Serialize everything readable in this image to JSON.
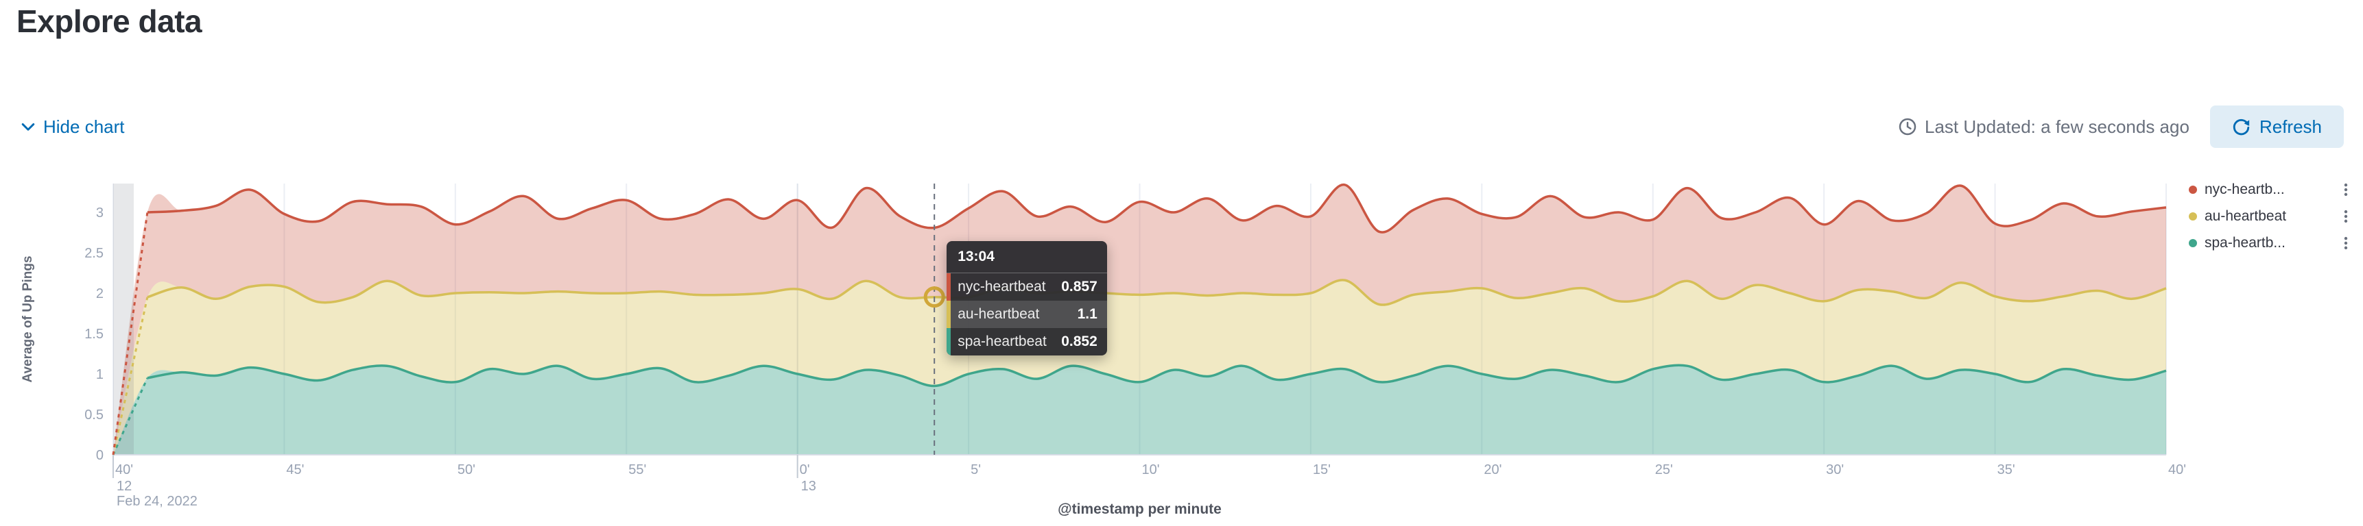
{
  "header": {
    "title": "Explore data"
  },
  "toolbar": {
    "hide_chart_label": "Hide chart",
    "last_updated": "Last Updated: a few seconds ago",
    "refresh_label": "Refresh"
  },
  "colors": {
    "link": "#006BB4",
    "crosshair": "#69707D",
    "hover_ring": "#D1A73A",
    "grid": "#EBEEF4",
    "axis_text": "#98A2B3",
    "partial_band": "rgba(105,112,125,0.16)"
  },
  "legend": {
    "items": [
      {
        "label": "nyc-heartb...",
        "color": "#CB5642"
      },
      {
        "label": "au-heartbeat",
        "color": "#D6BF57"
      },
      {
        "label": "spa-heartb...",
        "color": "#3FA68C"
      }
    ]
  },
  "tooltip": {
    "time": "13:04",
    "hover_index": 24,
    "rows": [
      {
        "label": "nyc-heartbeat",
        "value": "0.857",
        "color": "#CB5642",
        "highlight": false
      },
      {
        "label": "au-heartbeat",
        "value": "1.1",
        "color": "#D6BF57",
        "highlight": true
      },
      {
        "label": "spa-heartbeat",
        "value": "0.852",
        "color": "#3FA68C",
        "highlight": false
      }
    ]
  },
  "chart_data": {
    "type": "area",
    "stacked": true,
    "title": "",
    "xlabel": "@timestamp per minute",
    "ylabel": "Average of Up Pings",
    "y_ticks": [
      0,
      0.5,
      1,
      1.5,
      2,
      2.5,
      3
    ],
    "ylim": [
      0,
      3.3
    ],
    "x_start": "12:40",
    "x_end": "13:40",
    "x_interval": "1 minute",
    "x_ticks": [
      {
        "label": "40'",
        "index": 0
      },
      {
        "label": "45'",
        "index": 5
      },
      {
        "label": "50'",
        "index": 10
      },
      {
        "label": "55'",
        "index": 15
      },
      {
        "label": "0'",
        "index": 20
      },
      {
        "label": "5'",
        "index": 25
      },
      {
        "label": "10'",
        "index": 30
      },
      {
        "label": "15'",
        "index": 35
      },
      {
        "label": "20'",
        "index": 40
      },
      {
        "label": "25'",
        "index": 45
      },
      {
        "label": "30'",
        "index": 50
      },
      {
        "label": "35'",
        "index": 55
      },
      {
        "label": "40'",
        "index": 60
      }
    ],
    "x_context": [
      {
        "label": "12",
        "sub": "Feb 24, 2022",
        "index": 0
      },
      {
        "label": "13",
        "sub": "",
        "index": 20
      }
    ],
    "series": [
      {
        "name": "spa-heartbeat",
        "color": "#3FA68C",
        "fill": "rgba(63,166,140,0.40)",
        "values": [
          0,
          0.95,
          1.02,
          0.98,
          1.08,
          1.0,
          0.92,
          1.05,
          1.1,
          0.97,
          0.9,
          1.06,
          1.0,
          1.1,
          0.94,
          1.0,
          1.07,
          0.9,
          0.98,
          1.1,
          1.0,
          0.93,
          1.05,
          0.98,
          0.852,
          1.0,
          1.06,
          0.94,
          1.1,
          1.0,
          0.9,
          1.05,
          0.97,
          1.1,
          0.93,
          1.0,
          1.06,
          0.9,
          0.98,
          1.1,
          1.0,
          0.94,
          1.05,
          0.98,
          0.9,
          1.06,
          1.1,
          0.93,
          1.0,
          1.05,
          0.9,
          0.98,
          1.1,
          0.94,
          1.05,
          1.0,
          0.9,
          1.06,
          0.98,
          0.93,
          1.04
        ]
      },
      {
        "name": "au-heartbeat",
        "color": "#D6BF57",
        "fill": "rgba(214,191,87,0.35)",
        "values": [
          0,
          1.0,
          1.05,
          0.95,
          1.0,
          1.08,
          0.97,
          0.9,
          1.05,
          1.0,
          1.1,
          0.95,
          1.0,
          0.92,
          1.06,
          1.0,
          0.95,
          1.08,
          1.0,
          0.9,
          1.05,
          1.0,
          1.1,
          0.97,
          1.1,
          0.95,
          1.0,
          1.06,
          0.92,
          1.0,
          1.08,
          0.95,
          1.0,
          0.9,
          1.05,
          1.0,
          1.1,
          0.96,
          1.0,
          0.92,
          1.06,
          1.0,
          0.95,
          1.08,
          1.0,
          0.9,
          1.05,
          1.0,
          1.1,
          0.95,
          1.0,
          1.06,
          0.92,
          1.0,
          1.08,
          0.96,
          1.0,
          0.9,
          1.05,
          1.0,
          1.02
        ]
      },
      {
        "name": "nyc-heartbeat",
        "color": "#CB5642",
        "fill": "rgba(203,86,66,0.30)",
        "values": [
          0,
          1.05,
          0.95,
          1.15,
          1.2,
          0.9,
          1.0,
          1.18,
          0.95,
          1.1,
          0.85,
          1.0,
          1.2,
          0.9,
          1.05,
          1.15,
          0.9,
          1.0,
          1.18,
          0.92,
          1.1,
          0.88,
          1.15,
          1.0,
          0.857,
          1.1,
          1.2,
          0.95,
          1.05,
          0.88,
          1.15,
          1.0,
          1.2,
          0.9,
          1.1,
          0.95,
          1.18,
          0.9,
          1.05,
          1.15,
          0.92,
          1.0,
          1.2,
          0.88,
          1.1,
          0.95,
          1.15,
          1.0,
          0.9,
          1.18,
          0.95,
          1.1,
          0.88,
          1.05,
          1.2,
          0.9,
          1.0,
          1.15,
          0.92,
          1.08,
          1.0
        ]
      }
    ]
  }
}
